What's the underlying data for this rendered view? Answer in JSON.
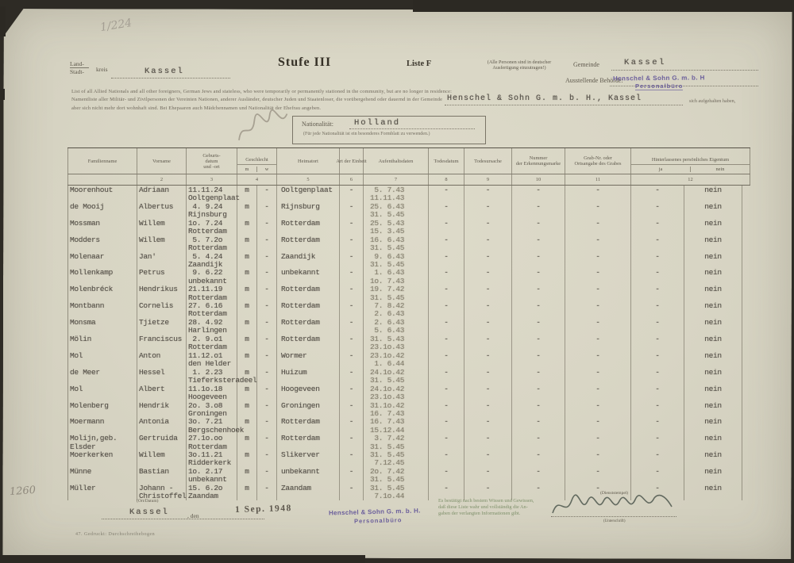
{
  "doc": {
    "pencil_top": "1/224",
    "pencil_bottom": "1260",
    "header": {
      "land": "Land-",
      "stadt": "Stadt-",
      "kreis": "kreis",
      "kreis_value": "Kassel",
      "stufe": "Stufe III",
      "liste": "Liste F",
      "note1": "(Alle Personen sind in deutscher",
      "note2": "Ausfertigung einzutragen!)",
      "gemeinde_label": "Gemeinde",
      "gemeinde_value": "Kassel",
      "behoerde_label": "Ausstellende Behörde:",
      "behoerde_stamp1": "Henschel & Sohn G. m. b. H",
      "behoerde_stamp2": "Personalbüro"
    },
    "instructions": {
      "line1": "List of all Allied Nationals and all other foreigners, German Jews and stateless, who were temporarily or permanently stationed in the community, but are no longer in residence:",
      "line2": "Namentliste aller Militär- und Zivilpersonen der Vereinten Nationen, anderer Ausländer, deutscher Juden und Staatenloser, die vorübergehend oder dauernd in der Gemeinde",
      "inserted": "Henschel & Sohn G. m. b. H., Kassel",
      "tail": "sich aufgehalten haben,",
      "line3": "aber sich nicht mehr dort wohnhaft sind. Bei Ehepaaren auch Mädchennamen und Nationalität der Ehefrau angeben."
    },
    "nationality": {
      "label": "Nationalität:",
      "value": "Holland",
      "note": "(Für jede Nationalität ist ein besonderes Formblatt zu verwenden.)"
    },
    "table": {
      "headers": {
        "name": "Familienname",
        "vorname": "Vorname",
        "geburt": [
          "Geburts-",
          "datum",
          "und -ort"
        ],
        "geschlecht": "Geschlecht",
        "m": "m",
        "w": "w",
        "heimatort": "Heimatort",
        "art": "Art der Einheit",
        "aufenthalt": "Aufenthaltsdaten",
        "todesdatum": "Todesdatum",
        "todesursache": "Todesursache",
        "marke": [
          "Nummer",
          "der Erkennungsmarke"
        ],
        "grab": [
          "Grab-Nr. oder",
          "Ortsangabe des Grabes"
        ],
        "eigentum": "Hinterlassenes persönliches Eigentum",
        "ja": "ja",
        "nein": "nein"
      },
      "numbers": [
        "",
        "2",
        "3",
        "4",
        "5",
        "6",
        "7",
        "8",
        "9",
        "10",
        "11",
        "12"
      ],
      "constants": {
        "m": "m",
        "w": "-",
        "art": "-",
        "todesdatum": "-",
        "todesursache": "-",
        "marke": "-",
        "grab": "-",
        "ja": "-",
        "nein": "nein"
      },
      "rows": [
        {
          "name": [
            "Moorenhout"
          ],
          "vorname": [
            "Adriaan"
          ],
          "geb": [
            "11.11.24",
            "Ooltgenplaat"
          ],
          "heimat": "Ooltgenplaat",
          "dates": [
            " 5. 7.43",
            "11.11.43"
          ]
        },
        {
          "name": [
            "de Mooij"
          ],
          "vorname": [
            "Albertus"
          ],
          "geb": [
            " 4. 9.24",
            "Rijnsburg"
          ],
          "heimat": "Rijnsburg",
          "dates": [
            "25. 6.43",
            "31. 5.45"
          ]
        },
        {
          "name": [
            "Mossman"
          ],
          "vorname": [
            "Willem"
          ],
          "geb": [
            "1o. 7.24",
            "Rotterdam"
          ],
          "heimat": "Rotterdam",
          "dates": [
            "25. 5.43",
            "15. 3.45"
          ]
        },
        {
          "name": [
            "Modders"
          ],
          "vorname": [
            "Willem"
          ],
          "geb": [
            " 5. 7.2o",
            "Rotterdam"
          ],
          "heimat": "Rotterdam",
          "dates": [
            "16. 6.43",
            "31. 5.45"
          ]
        },
        {
          "name": [
            "Molenaar"
          ],
          "vorname": [
            "Jan'"
          ],
          "geb": [
            " 5. 4.24",
            "Zaandijk"
          ],
          "heimat": "Zaandijk",
          "dates": [
            " 9. 6.43",
            "31. 5.45"
          ]
        },
        {
          "name": [
            "Mollenkamp"
          ],
          "vorname": [
            "Petrus"
          ],
          "geb": [
            " 9. 6.22",
            "unbekannt"
          ],
          "heimat": "unbekannt",
          "dates": [
            " 1. 6.43",
            "1o. 7.43"
          ]
        },
        {
          "name": [
            "Molenbréck"
          ],
          "vorname": [
            "Hendrikus"
          ],
          "geb": [
            "21.11.19",
            "Rotterdam"
          ],
          "heimat": "Rotterdam",
          "dates": [
            "19. 7.42",
            "31. 5.45"
          ]
        },
        {
          "name": [
            "Montbann"
          ],
          "vorname": [
            "Cornelis"
          ],
          "geb": [
            "27. 6.16",
            "Rotterdam"
          ],
          "heimat": "Rotterdam",
          "dates": [
            " 7. 8.42",
            " 2. 6.43"
          ]
        },
        {
          "name": [
            "Monsma"
          ],
          "vorname": [
            "Tjietze"
          ],
          "geb": [
            "28. 4.92",
            "Harlingen"
          ],
          "heimat": "Rotterdam",
          "dates": [
            " 2. 6.43",
            " 5. 6.43"
          ]
        },
        {
          "name": [
            "Mölin"
          ],
          "vorname": [
            "Franciscus"
          ],
          "geb": [
            " 2. 9.o1",
            "Rotterdam"
          ],
          "heimat": "Rotterdam",
          "dates": [
            "31. 5.43",
            "23.1o.43"
          ]
        },
        {
          "name": [
            "Mol"
          ],
          "vorname": [
            "Anton"
          ],
          "geb": [
            "11.12.o1",
            "den Helder"
          ],
          "heimat": "Wormer",
          "dates": [
            "23.1o.42",
            " 1. 6.44"
          ]
        },
        {
          "name": [
            "de Meer"
          ],
          "vorname": [
            "Hessel"
          ],
          "geb": [
            " 1. 2.23",
            "Tieferksteradeel"
          ],
          "heimat": "Huizum",
          "dates": [
            "24.1o.42",
            "31. 5.45"
          ]
        },
        {
          "name": [
            "Mol"
          ],
          "vorname": [
            "Albert"
          ],
          "geb": [
            "11.1o.18",
            "Hoogeveen"
          ],
          "heimat": "Hoogeveen",
          "dates": [
            "24.1o.42",
            "23.1o.43"
          ]
        },
        {
          "name": [
            "Molenberg"
          ],
          "vorname": [
            "Hendrik"
          ],
          "geb": [
            "2o. 3.o8",
            "Groningen"
          ],
          "heimat": "Groningen",
          "dates": [
            "31.1o.42",
            "16. 7.43"
          ]
        },
        {
          "name": [
            "Moermann"
          ],
          "vorname": [
            "Antonia"
          ],
          "geb": [
            "3o. 7.21",
            "Bergschenhoek"
          ],
          "heimat": "Rotterdam",
          "dates": [
            "16. 7.43",
            "15.12.44"
          ]
        },
        {
          "name": [
            "Molijn,geb.",
            "Elsder"
          ],
          "vorname": [
            "Gertruida"
          ],
          "geb": [
            "27.1o.oo",
            "Rotterdam"
          ],
          "heimat": "Rotterdam",
          "dates": [
            " 3. 7.42",
            "31. 5.45"
          ]
        },
        {
          "name": [
            "Moerkerken"
          ],
          "vorname": [
            "Willem"
          ],
          "geb": [
            "3o.11.21",
            "Ridderkerk"
          ],
          "heimat": "Slikerver",
          "dates": [
            "31. 5.45",
            " 7.12.45"
          ]
        },
        {
          "name": [
            "Münne"
          ],
          "vorname": [
            "Bastian"
          ],
          "geb": [
            "1o. 2.17",
            "unbekannt"
          ],
          "heimat": "unbekannt",
          "dates": [
            "2o. 7.42",
            "31. 5.45"
          ]
        },
        {
          "name": [
            "Müller"
          ],
          "vorname": [
            "Johann -",
            "Christoffel"
          ],
          "geb": [
            "15. 6.2o",
            "Zaandam"
          ],
          "heimat": "Zaandam",
          "dates": [
            "31. 5.45",
            " 7.1o.44"
          ]
        }
      ]
    },
    "footer": {
      "ort_label": "(Ort/Datum)",
      "place": "Kassel",
      "den": ", den",
      "date_stamp": "1 Sep. 1948",
      "stamp1": "Henschel & Sohn G. m. b. H.",
      "stamp2": "Personalbüro",
      "cert": [
        "Es bestätigt nach bestem Wissen und Gewissen,",
        "daß diese Liste wahr und vollständig die An-",
        "gaben der verlangten Informationen gibt."
      ],
      "dienststempel": "(Dienststempel)",
      "unterschrift": "(Unterschrift)",
      "print_note": "47. Gedruckt: Durchschreibebogen"
    }
  }
}
